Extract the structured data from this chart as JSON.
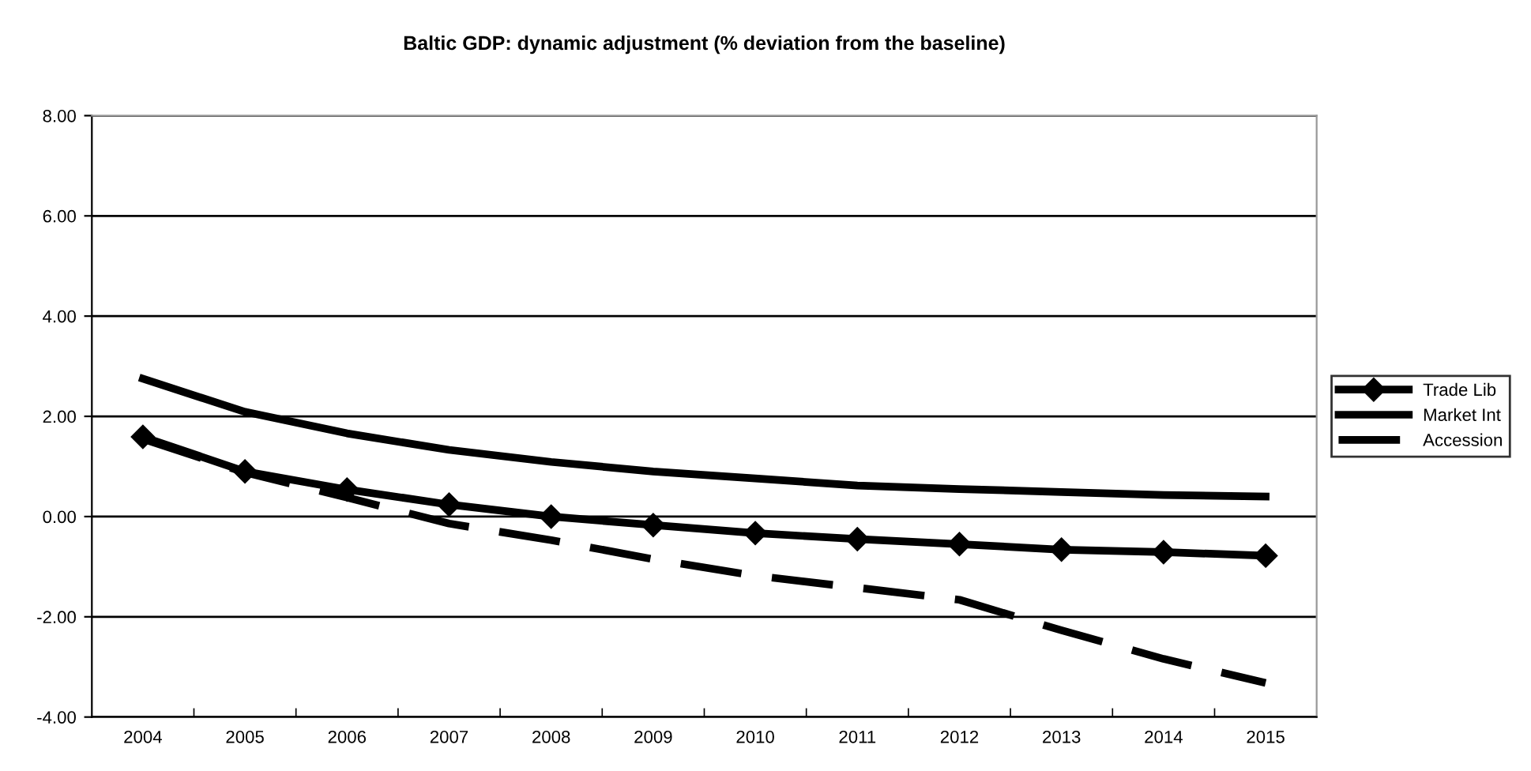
{
  "chart_data": {
    "type": "line",
    "title": "Baltic GDP: dynamic adjustment (% deviation from the baseline)",
    "categories": [
      "2004",
      "2005",
      "2006",
      "2007",
      "2008",
      "2009",
      "2010",
      "2011",
      "2012",
      "2013",
      "2014",
      "2015"
    ],
    "series": [
      {
        "name": "Trade Lib",
        "color": "#000000",
        "marker": "diamond",
        "line_style": "solid",
        "values": [
          1.59,
          0.9,
          0.54,
          0.24,
          0.0,
          -0.17,
          -0.33,
          -0.45,
          -0.55,
          -0.66,
          -0.71,
          -0.78
        ]
      },
      {
        "name": "Market Int",
        "color": "#000000",
        "marker": "none",
        "line_style": "solid",
        "values": [
          2.75,
          2.09,
          1.66,
          1.33,
          1.09,
          0.9,
          0.76,
          0.62,
          0.55,
          0.49,
          0.43,
          0.4
        ]
      },
      {
        "name": "Accession",
        "color": "#000000",
        "marker": "none",
        "line_style": "dashed",
        "values": [
          1.55,
          0.88,
          0.38,
          -0.14,
          -0.47,
          -0.85,
          -1.18,
          -1.42,
          -1.66,
          -2.27,
          -2.84,
          -3.32
        ]
      }
    ],
    "ylim": [
      -4,
      8
    ],
    "yticks": [
      {
        "value": -4,
        "label": "-4.00"
      },
      {
        "value": -2,
        "label": "-2.00"
      },
      {
        "value": 0,
        "label": "0.00"
      },
      {
        "value": 2,
        "label": "2.00"
      },
      {
        "value": 4,
        "label": "4.00"
      },
      {
        "value": 6,
        "label": "6.00"
      },
      {
        "value": 8,
        "label": "8.00"
      }
    ],
    "grid": "y",
    "legend": "right"
  }
}
